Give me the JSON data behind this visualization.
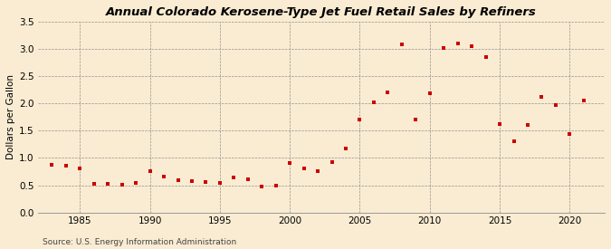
{
  "title": "Annual Colorado Kerosene-Type Jet Fuel Retail Sales by Refiners",
  "ylabel": "Dollars per Gallon",
  "source": "Source: U.S. Energy Information Administration",
  "background_color": "#faecd2",
  "marker_color": "#cc0000",
  "xlim": [
    1982,
    2022.5
  ],
  "ylim": [
    0.0,
    3.5
  ],
  "yticks": [
    0.0,
    0.5,
    1.0,
    1.5,
    2.0,
    2.5,
    3.0,
    3.5
  ],
  "xticks": [
    1985,
    1990,
    1995,
    2000,
    2005,
    2010,
    2015,
    2020
  ],
  "years": [
    1983,
    1984,
    1985,
    1986,
    1987,
    1988,
    1989,
    1990,
    1991,
    1992,
    1993,
    1994,
    1995,
    1996,
    1997,
    1998,
    1999,
    2000,
    2001,
    2002,
    2003,
    2004,
    2005,
    2006,
    2007,
    2008,
    2009,
    2010,
    2011,
    2012,
    2013,
    2014,
    2015,
    2016,
    2017,
    2018,
    2019,
    2020,
    2021
  ],
  "values": [
    0.88,
    0.85,
    0.8,
    0.52,
    0.52,
    0.51,
    0.55,
    0.75,
    0.65,
    0.6,
    0.58,
    0.56,
    0.54,
    0.64,
    0.61,
    0.48,
    0.5,
    0.9,
    0.8,
    0.75,
    0.93,
    1.17,
    1.7,
    2.02,
    2.2,
    3.08,
    1.7,
    2.18,
    3.02,
    3.1,
    3.05,
    2.85,
    1.62,
    1.3,
    1.6,
    2.12,
    1.97,
    1.44,
    2.05
  ],
  "title_fontsize": 9.5,
  "ylabel_fontsize": 7.5,
  "tick_fontsize": 7.5,
  "source_fontsize": 6.5
}
